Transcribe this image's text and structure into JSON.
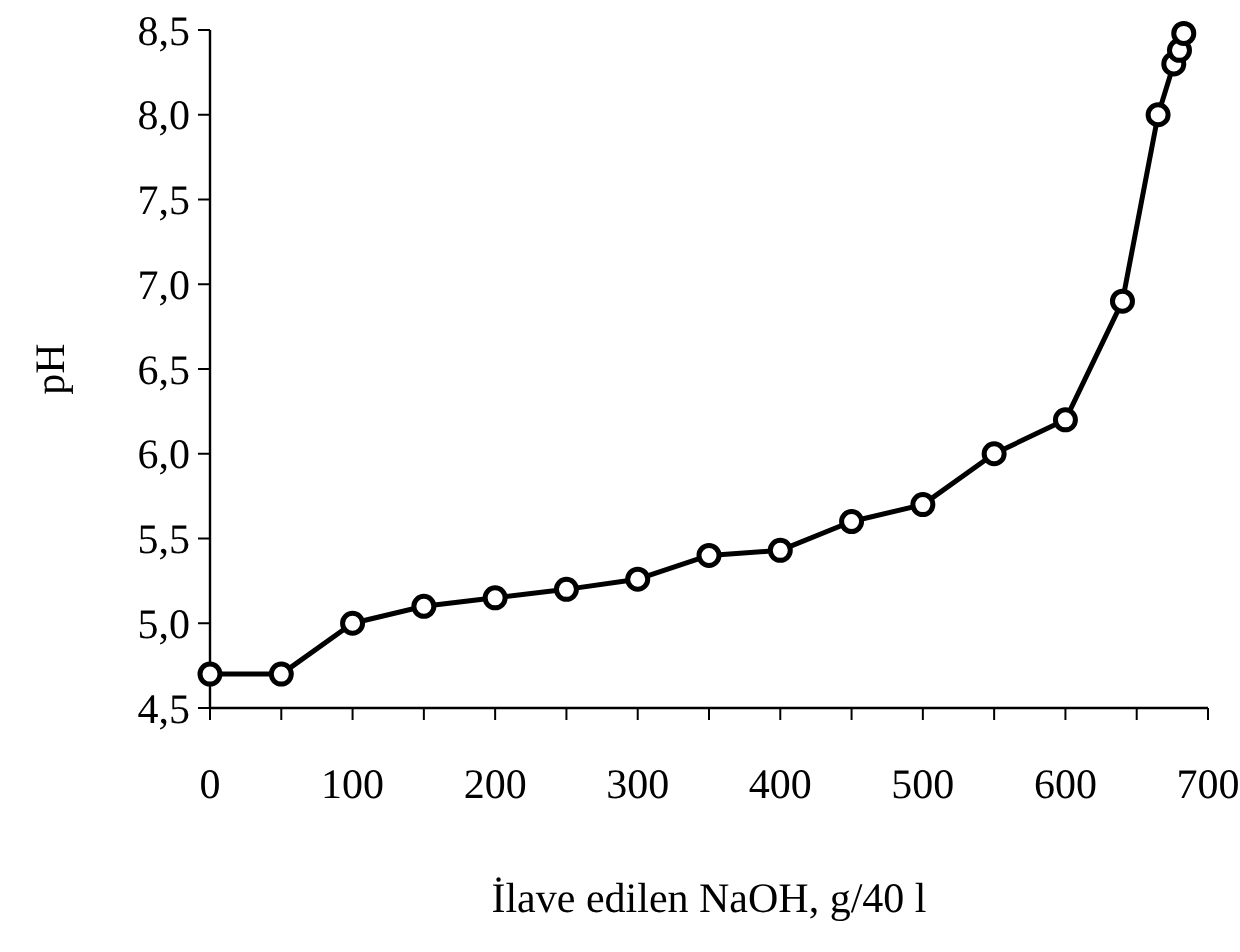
{
  "chart_data": {
    "type": "line",
    "xlabel": "İlave edilen NaOH, g/40 l",
    "ylabel": "pH",
    "x": [
      0,
      50,
      100,
      150,
      200,
      250,
      300,
      350,
      400,
      450,
      500,
      550,
      600,
      640,
      665,
      676,
      680,
      683
    ],
    "series": [
      {
        "color": "#000000",
        "values": [
          4.7,
          4.7,
          5.0,
          5.1,
          5.15,
          5.2,
          5.26,
          5.4,
          5.43,
          5.6,
          5.7,
          6.0,
          6.2,
          6.9,
          8.0,
          8.3,
          8.38,
          8.48
        ]
      }
    ],
    "xlim": [
      0,
      700
    ],
    "xticks": [
      0,
      {
        "value": 50,
        "label": null
      },
      100,
      {
        "value": 150,
        "label": null
      },
      200,
      {
        "value": 250,
        "label": null
      },
      300,
      {
        "value": 350,
        "label": null
      },
      400,
      {
        "value": 450,
        "label": null
      },
      500,
      {
        "value": 550,
        "label": null
      },
      600,
      {
        "value": 650,
        "label": null
      },
      700
    ],
    "ylim": [
      4.5,
      8.5
    ],
    "yticks": [
      {
        "value": 4.5,
        "label": "4,5"
      },
      {
        "value": 5,
        "label": "5,0"
      },
      {
        "value": 5.5,
        "label": "5,5"
      },
      {
        "value": 6,
        "label": "6,0"
      },
      {
        "value": 6.5,
        "label": "6,5"
      },
      {
        "value": 7,
        "label": "7,0"
      },
      {
        "value": 7.5,
        "label": "7,5"
      },
      {
        "value": 8,
        "label": "8,0"
      },
      {
        "value": 8.5,
        "label": "8,5"
      }
    ],
    "grid": false,
    "marker": "circle",
    "line_style": "solid"
  }
}
